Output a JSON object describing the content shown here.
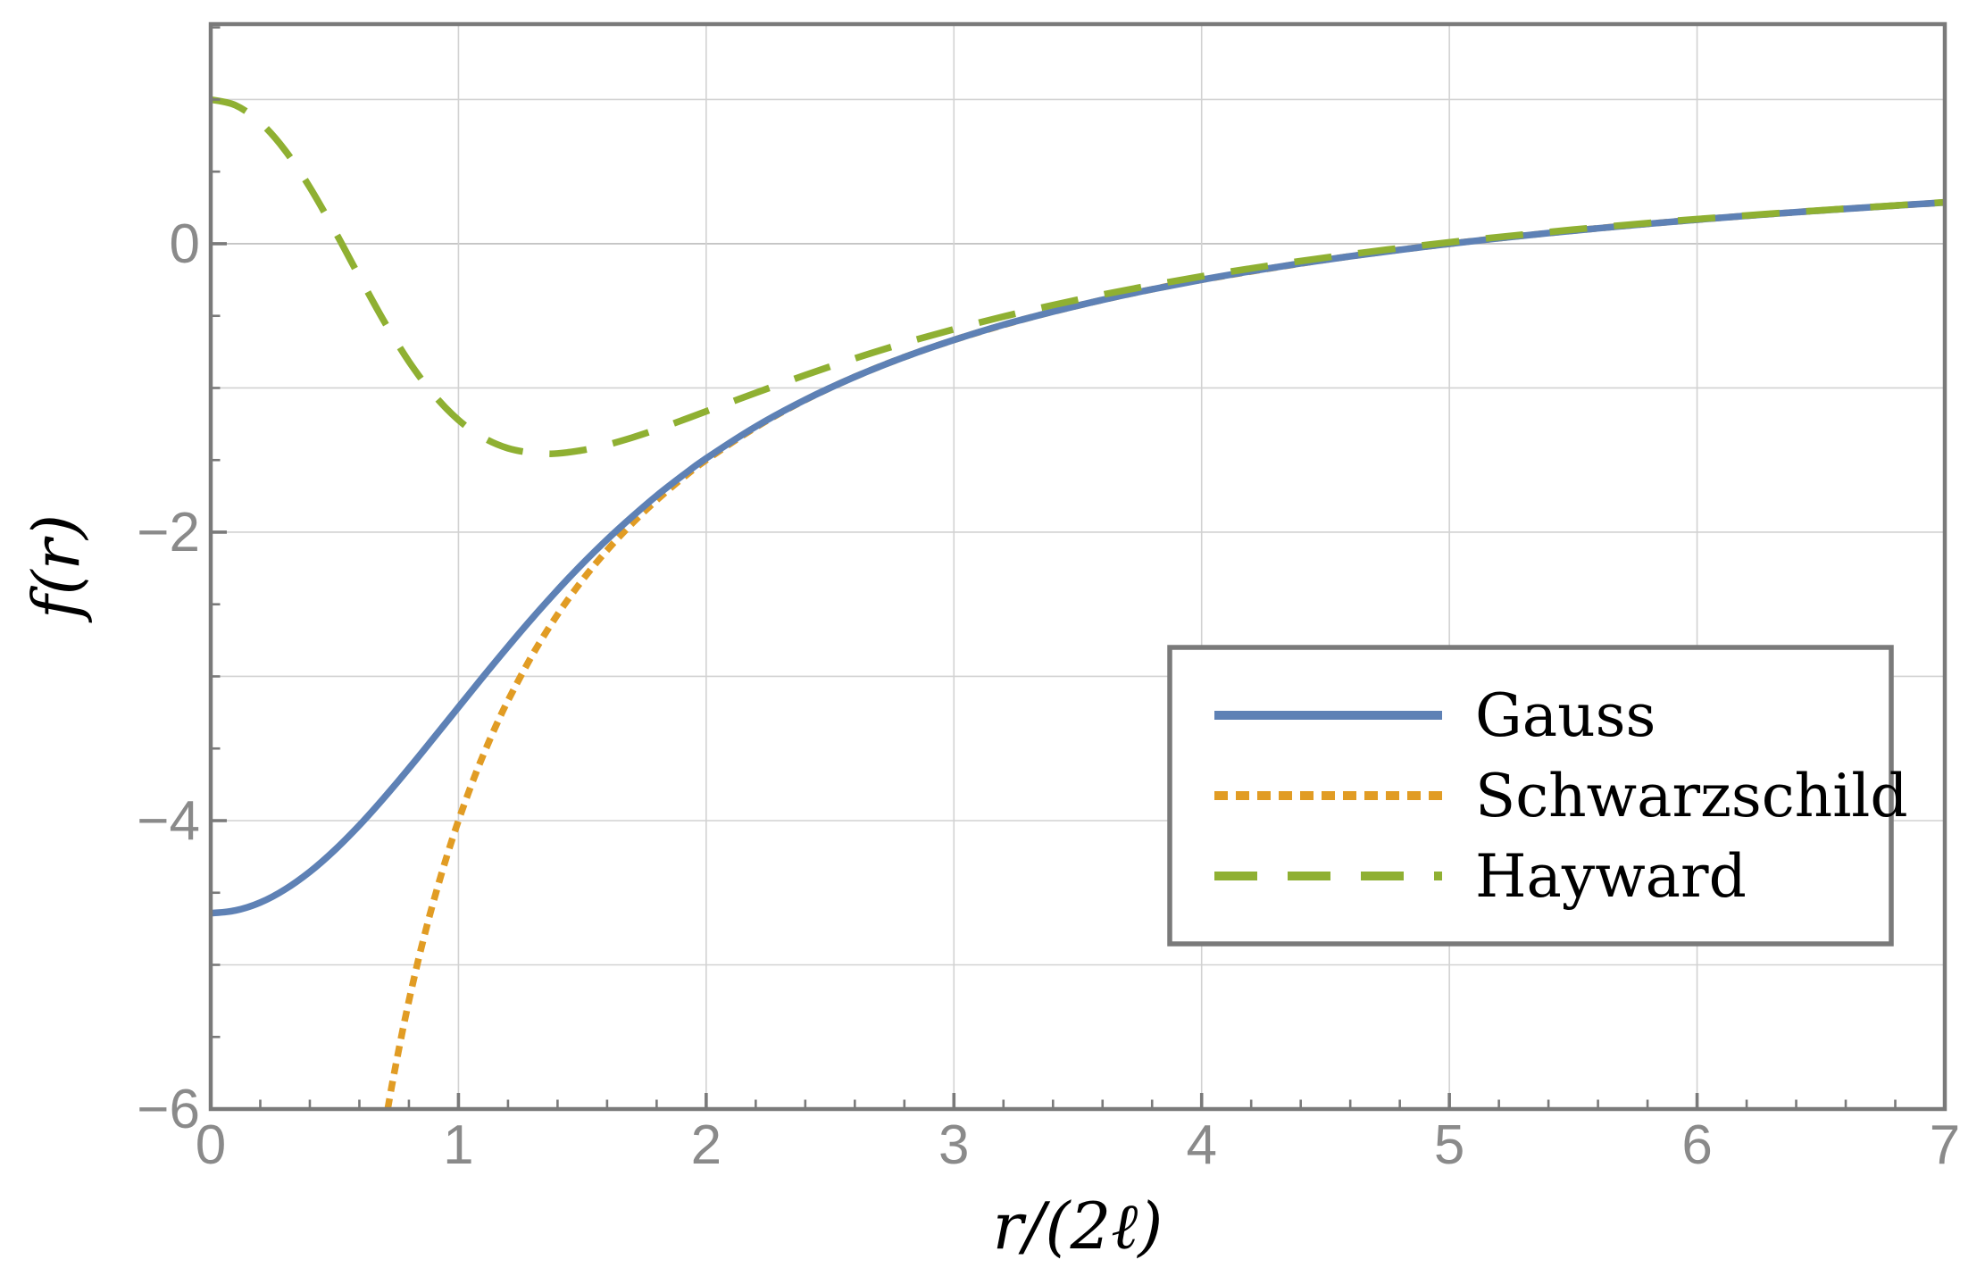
{
  "chart_data": {
    "type": "line",
    "title": "",
    "xlabel": "r/(2ℓ)",
    "ylabel": "f(r)",
    "xlim": [
      0,
      7
    ],
    "ylim": [
      -6,
      1.523
    ],
    "x_ticks": [
      0,
      1,
      2,
      3,
      4,
      5,
      6,
      7
    ],
    "x_tick_labels": [
      "0",
      "1",
      "2",
      "3",
      "4",
      "5",
      "6",
      "7"
    ],
    "y_ticks": [
      0,
      -2,
      -4,
      -6
    ],
    "y_tick_labels": [
      "0",
      "−2",
      "−4",
      "−6"
    ],
    "x_minor_step": 0.2,
    "y_minor_step": 0.5,
    "x_gridlines": [
      1,
      2,
      3,
      4,
      5,
      6
    ],
    "y_gridlines": [
      1,
      0,
      -1,
      -2,
      -3,
      -4,
      -5
    ],
    "grid": true,
    "legend": {
      "position": "inside-right",
      "entries": [
        "Gauss",
        "Schwarzschild",
        "Hayward"
      ]
    },
    "colors": {
      "frame": "#7a7a7a",
      "grid": "#d2d2d2",
      "zero_grid": "#bcbcbc",
      "tick_label": "#8a8a8a",
      "text": "#000000",
      "background": "#ffffff"
    },
    "series": [
      {
        "name": "Gauss",
        "color": "#5E81B5",
        "style": "solid",
        "z": 2,
        "points": [
          [
            0,
            -4.642
          ],
          [
            0.1,
            -4.623
          ],
          [
            0.2,
            -4.568
          ],
          [
            0.3,
            -4.477
          ],
          [
            0.4,
            -4.355
          ],
          [
            0.5,
            -4.205
          ],
          [
            0.6,
            -4.032
          ],
          [
            0.7,
            -3.841
          ],
          [
            0.8,
            -3.638
          ],
          [
            0.9,
            -3.427
          ],
          [
            1.0,
            -3.214
          ],
          [
            1.1,
            -3.001
          ],
          [
            1.2,
            -2.793
          ],
          [
            1.3,
            -2.592
          ],
          [
            1.4,
            -2.401
          ],
          [
            1.5,
            -2.22
          ],
          [
            1.6,
            -2.051
          ],
          [
            1.7,
            -1.894
          ],
          [
            1.8,
            -1.747
          ],
          [
            1.9,
            -1.613
          ],
          [
            2.0,
            -1.488
          ],
          [
            2.2,
            -1.268
          ],
          [
            2.4,
            -1.082
          ],
          [
            2.6,
            -0.923
          ],
          [
            2.8,
            -0.786
          ],
          [
            3.0,
            -0.667
          ],
          [
            3.2,
            -0.562
          ],
          [
            3.4,
            -0.471
          ],
          [
            3.6,
            -0.389
          ],
          [
            3.8,
            -0.316
          ],
          [
            4.0,
            -0.25
          ],
          [
            4.2,
            -0.19
          ],
          [
            4.4,
            -0.136
          ],
          [
            4.6,
            -0.087
          ],
          [
            4.8,
            -0.042
          ],
          [
            5.0,
            0.0
          ],
          [
            5.2,
            0.038
          ],
          [
            5.4,
            0.074
          ],
          [
            5.6,
            0.107
          ],
          [
            5.8,
            0.138
          ],
          [
            6.0,
            0.167
          ],
          [
            6.2,
            0.194
          ],
          [
            6.4,
            0.219
          ],
          [
            6.6,
            0.242
          ],
          [
            6.8,
            0.265
          ],
          [
            7.0,
            0.286
          ]
        ]
      },
      {
        "name": "Schwarzschild",
        "color": "#E19C24",
        "style": "dotted",
        "z": 1,
        "points": [
          [
            0.7143,
            -6.0
          ],
          [
            0.73,
            -5.849
          ],
          [
            0.75,
            -5.667
          ],
          [
            0.78,
            -5.41
          ],
          [
            0.81,
            -5.173
          ],
          [
            0.84,
            -4.952
          ],
          [
            0.87,
            -4.747
          ],
          [
            0.9,
            -4.556
          ],
          [
            0.95,
            -4.263
          ],
          [
            1.0,
            -4.0
          ],
          [
            1.05,
            -3.762
          ],
          [
            1.1,
            -3.545
          ],
          [
            1.15,
            -3.348
          ],
          [
            1.2,
            -3.167
          ],
          [
            1.3,
            -2.846
          ],
          [
            1.4,
            -2.571
          ],
          [
            1.5,
            -2.333
          ],
          [
            1.6,
            -2.125
          ],
          [
            1.7,
            -1.941
          ],
          [
            1.8,
            -1.778
          ],
          [
            1.9,
            -1.632
          ],
          [
            2.0,
            -1.5
          ],
          [
            2.2,
            -1.273
          ],
          [
            2.4,
            -1.083
          ],
          [
            2.6,
            -0.923
          ],
          [
            2.8,
            -0.786
          ],
          [
            3.0,
            -0.667
          ],
          [
            3.2,
            -0.563
          ],
          [
            3.4,
            -0.471
          ],
          [
            3.6,
            -0.389
          ],
          [
            3.8,
            -0.316
          ],
          [
            4.0,
            -0.25
          ],
          [
            4.5,
            -0.111
          ],
          [
            5.0,
            0.0
          ],
          [
            5.5,
            0.091
          ],
          [
            6.0,
            0.167
          ],
          [
            6.5,
            0.231
          ],
          [
            7.0,
            0.286
          ]
        ]
      },
      {
        "name": "Hayward",
        "color": "#8FB032",
        "style": "dashed",
        "z": 3,
        "points": [
          [
            0,
            1.0
          ],
          [
            0.1,
            0.96
          ],
          [
            0.2,
            0.841
          ],
          [
            0.3,
            0.648
          ],
          [
            0.4,
            0.391
          ],
          [
            0.5,
            0.091
          ],
          [
            0.6,
            -0.228
          ],
          [
            0.7,
            -0.538
          ],
          [
            0.8,
            -0.816
          ],
          [
            0.9,
            -1.046
          ],
          [
            1.0,
            -1.222
          ],
          [
            1.1,
            -1.344
          ],
          [
            1.2,
            -1.418
          ],
          [
            1.3,
            -1.451
          ],
          [
            1.357,
            -1.456
          ],
          [
            1.4,
            -1.454
          ],
          [
            1.5,
            -1.432
          ],
          [
            1.6,
            -1.394
          ],
          [
            1.7,
            -1.345
          ],
          [
            1.8,
            -1.288
          ],
          [
            1.9,
            -1.226
          ],
          [
            2.0,
            -1.162
          ],
          [
            2.2,
            -1.034
          ],
          [
            2.4,
            -0.911
          ],
          [
            2.6,
            -0.795
          ],
          [
            2.8,
            -0.689
          ],
          [
            3.0,
            -0.593
          ],
          [
            3.2,
            -0.505
          ],
          [
            3.4,
            -0.425
          ],
          [
            3.6,
            -0.353
          ],
          [
            3.8,
            -0.287
          ],
          [
            4.0,
            -0.226
          ],
          [
            4.2,
            -0.171
          ],
          [
            4.4,
            -0.12
          ],
          [
            4.6,
            -0.073
          ],
          [
            4.8,
            -0.03
          ],
          [
            5.0,
            0.01
          ],
          [
            5.2,
            0.046
          ],
          [
            5.5,
            0.098
          ],
          [
            5.8,
            0.143
          ],
          [
            6.0,
            0.171
          ],
          [
            6.3,
            0.209
          ],
          [
            6.6,
            0.243
          ],
          [
            7.0,
            0.288
          ]
        ]
      }
    ]
  }
}
